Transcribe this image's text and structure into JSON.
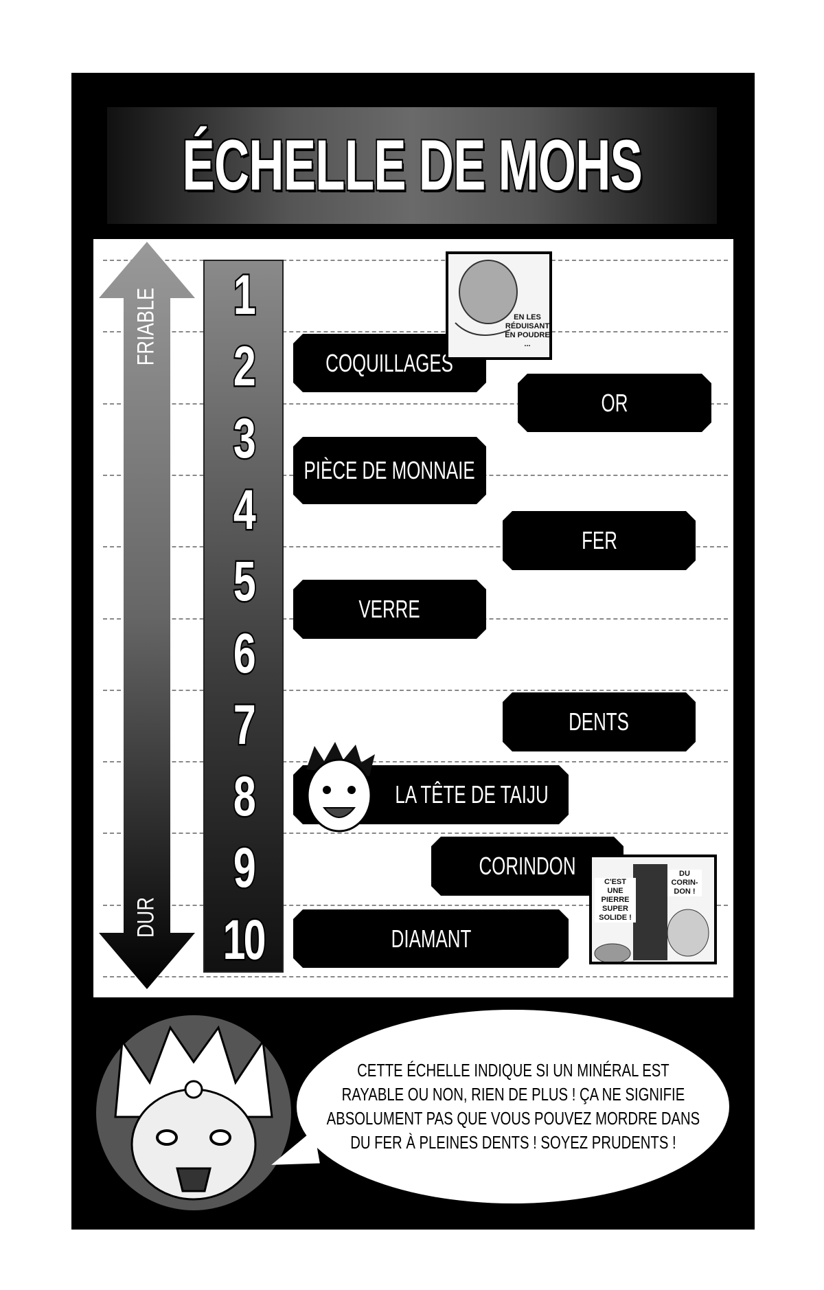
{
  "title": "ÉCHELLE DE MOHS",
  "axis": {
    "top_label": "FRIABLE",
    "bottom_label": "DUR"
  },
  "scale_numbers": [
    "1",
    "2",
    "3",
    "4",
    "5",
    "6",
    "7",
    "8",
    "9",
    "10"
  ],
  "minerals": [
    {
      "label": "COQUILLAGES"
    },
    {
      "label": "OR"
    },
    {
      "label": "PIÈCE DE MONNAIE"
    },
    {
      "label": "FER"
    },
    {
      "label": "VERRE"
    },
    {
      "label": "DENTS"
    },
    {
      "label": "LA TÊTE DE TAIJU"
    },
    {
      "label": "CORINDON"
    },
    {
      "label": "DIAMANT"
    }
  ],
  "panels": {
    "shells_caption": [
      "EN LES",
      "RÉDUISANT",
      "EN POUDRE",
      "..."
    ],
    "corundum_left": [
      "C'EST",
      "UNE PIERRE",
      "SUPER",
      "SOLIDE !"
    ],
    "corundum_right": [
      "DU",
      "CORIN-",
      "DON !"
    ]
  },
  "speech": [
    "CETTE ÉCHELLE INDIQUE SI UN MINÉRAL EST",
    "RAYABLE OU NON, RIEN DE PLUS ! ÇA NE SIGNIFIE",
    "ABSOLUMENT PAS QUE VOUS POUVEZ MORDRE DANS",
    "DU FER À PLEINES DENTS ! SOYEZ PRUDENTS !"
  ]
}
